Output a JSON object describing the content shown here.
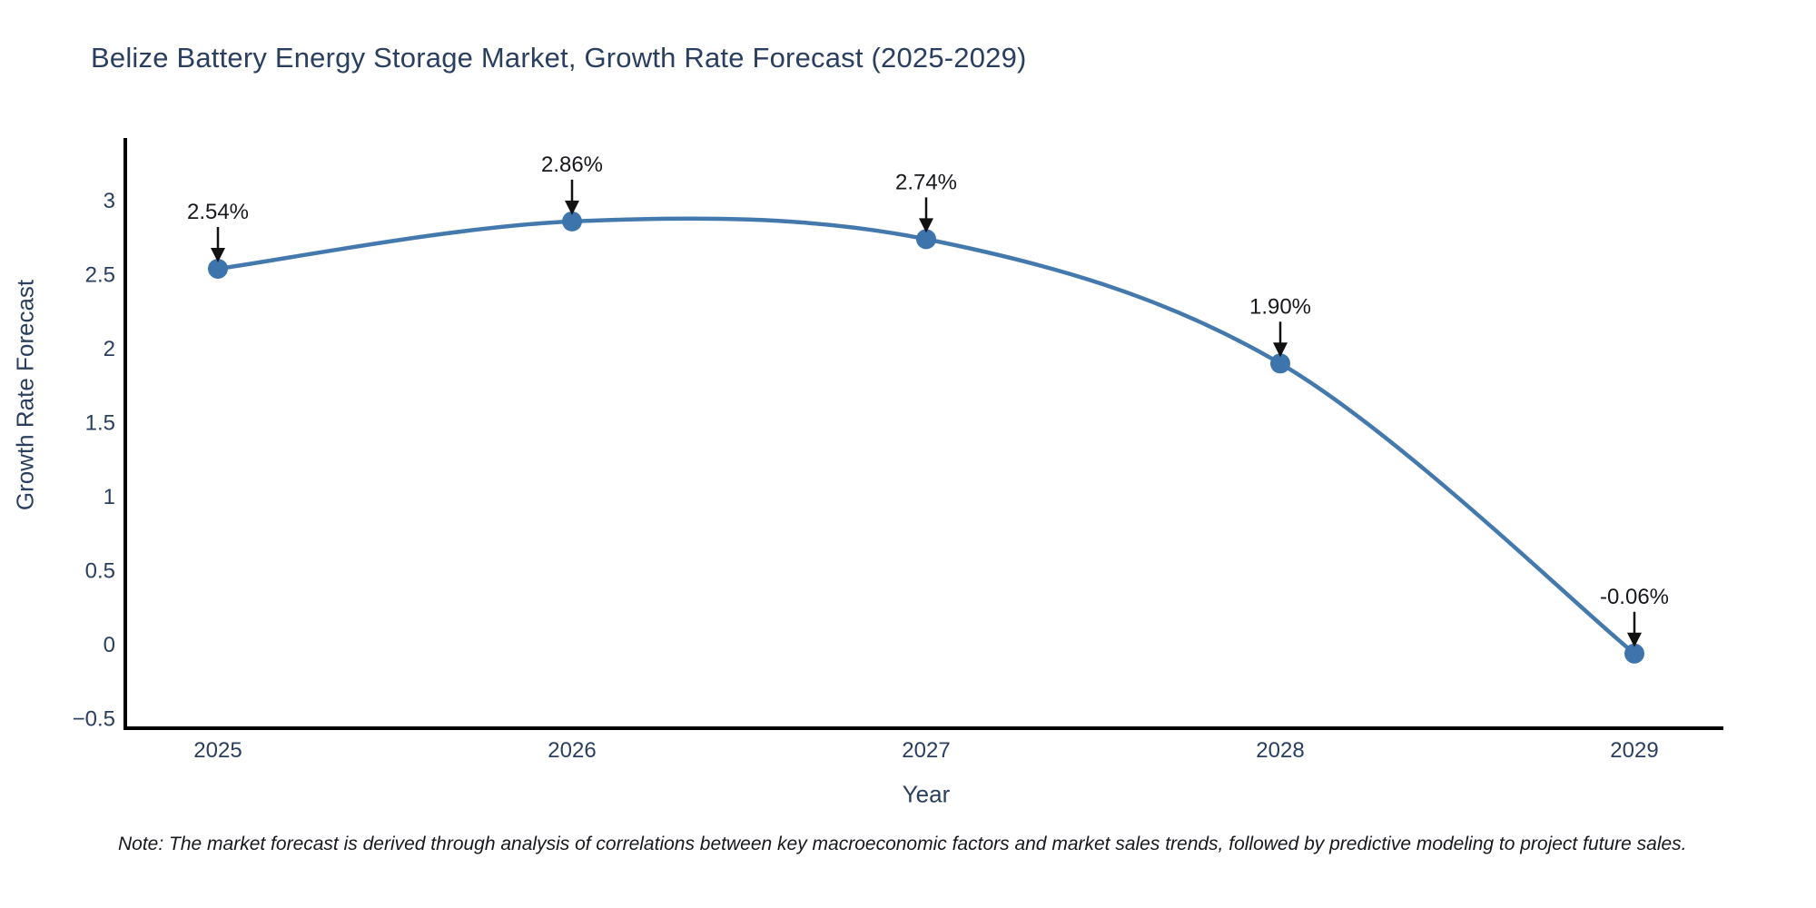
{
  "chart_data": {
    "type": "line",
    "title": "Belize Battery Energy Storage Market, Growth Rate Forecast (2025-2029)",
    "xlabel": "Year",
    "ylabel": "Growth Rate Forecast",
    "x": [
      2025,
      2026,
      2027,
      2028,
      2029
    ],
    "series": [
      {
        "name": "Growth Rate Forecast",
        "values": [
          2.54,
          2.86,
          2.74,
          1.9,
          -0.06
        ],
        "point_labels": [
          "2.54%",
          "2.86%",
          "2.74%",
          "1.90%",
          "-0.06%"
        ]
      }
    ],
    "line_shape": "spline",
    "markers": true,
    "annotations_with_arrows": true,
    "grid": false,
    "legend_position": "none",
    "ylim": [
      -0.59,
      3.43
    ],
    "yticks": [
      3,
      2.5,
      2,
      1.5,
      1,
      0.5,
      0,
      -0.5
    ],
    "ytick_labels": [
      "3",
      "2.5",
      "2",
      "1.5",
      "1",
      "0.5",
      "0",
      "−0.5"
    ],
    "xtick_labels": [
      "2025",
      "2026",
      "2027",
      "2028",
      "2029"
    ],
    "note": "Note: The market forecast is derived through analysis of correlations between key macroeconomic factors and market sales trends, followed by predictive modeling to project future sales.",
    "colors": {
      "line": "#4479ae",
      "marker": "#3d74ab",
      "axis": "#000000",
      "tick_text": "#2a3f5f",
      "annotation_text": "#16181d",
      "arrow": "#111111",
      "background": "#ffffff"
    }
  }
}
